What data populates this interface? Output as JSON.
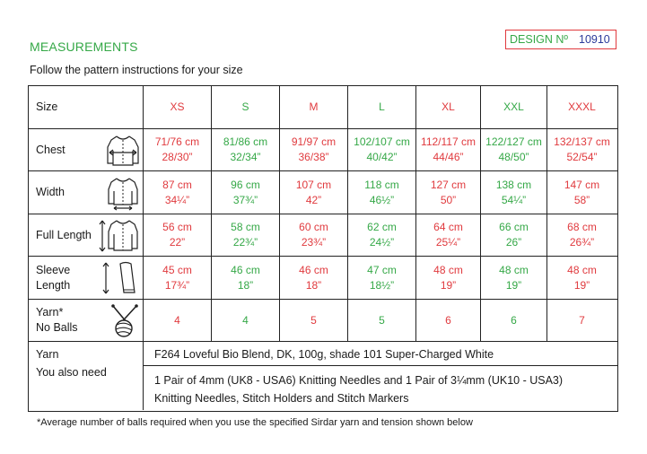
{
  "heading": "MEASUREMENTS",
  "design": {
    "label": "DESIGN Nº",
    "number": "10910"
  },
  "subtitle": "Follow the pattern instructions for your size",
  "sizes_label": "Size",
  "sizes": [
    "XS",
    "S",
    "M",
    "L",
    "XL",
    "XXL",
    "XXXL"
  ],
  "rows": {
    "chest": {
      "label": "Chest",
      "cm": [
        "71/76 cm",
        "81/86 cm",
        "91/97 cm",
        "102/107 cm",
        "112/117 cm",
        "122/127 cm",
        "132/137 cm"
      ],
      "in": [
        "28/30”",
        "32/34”",
        "36/38”",
        "40/42”",
        "44/46”",
        "48/50”",
        "52/54”"
      ]
    },
    "width": {
      "label": "Width",
      "cm": [
        "87 cm",
        "96 cm",
        "107 cm",
        "118 cm",
        "127 cm",
        "138 cm",
        "147 cm"
      ],
      "in": [
        "34¼”",
        "37¾”",
        "42”",
        "46½”",
        "50”",
        "54¼”",
        "58”"
      ]
    },
    "full_length": {
      "label": "Full Length",
      "cm": [
        "56 cm",
        "58 cm",
        "60 cm",
        "62 cm",
        "64 cm",
        "66 cm",
        "68 cm"
      ],
      "in": [
        "22”",
        "22¾”",
        "23¾”",
        "24½”",
        "25¼”",
        "26”",
        "26¾”"
      ]
    },
    "sleeve_length": {
      "label_line1": "Sleeve",
      "label_line2": "Length",
      "cm": [
        "45 cm",
        "46 cm",
        "46 cm",
        "47 cm",
        "48 cm",
        "48 cm",
        "48 cm"
      ],
      "in": [
        "17¾”",
        "18”",
        "18”",
        "18½”",
        "19”",
        "19”",
        "19”"
      ]
    },
    "balls": {
      "label_line1": "Yarn*",
      "label_line2": "No Balls",
      "values": [
        "4",
        "4",
        "5",
        "5",
        "6",
        "6",
        "7"
      ]
    }
  },
  "yarn": {
    "label": "Yarn",
    "you_also_need_label": "You also need",
    "yarn_text": "F264 Loveful Bio Blend, DK, 100g, shade 101 Super-Charged White",
    "needs_line1": "1 Pair of 4mm (UK8 - USA6) Knitting Needles and 1 Pair of 3¼mm (UK10 - USA3)",
    "needs_line2": "Knitting Needles, Stitch Holders and Stitch Markers"
  },
  "footnote": "*Average number of balls required when you use the specified Sirdar yarn and tension shown below",
  "colors": {
    "green": "#35a847",
    "red": "#e03a3e",
    "navy": "#2a3a9a"
  },
  "icons": [
    "chest-measure-icon",
    "width-measure-icon",
    "full-length-measure-icon",
    "sleeve-length-measure-icon",
    "yarn-ball-needles-icon"
  ]
}
